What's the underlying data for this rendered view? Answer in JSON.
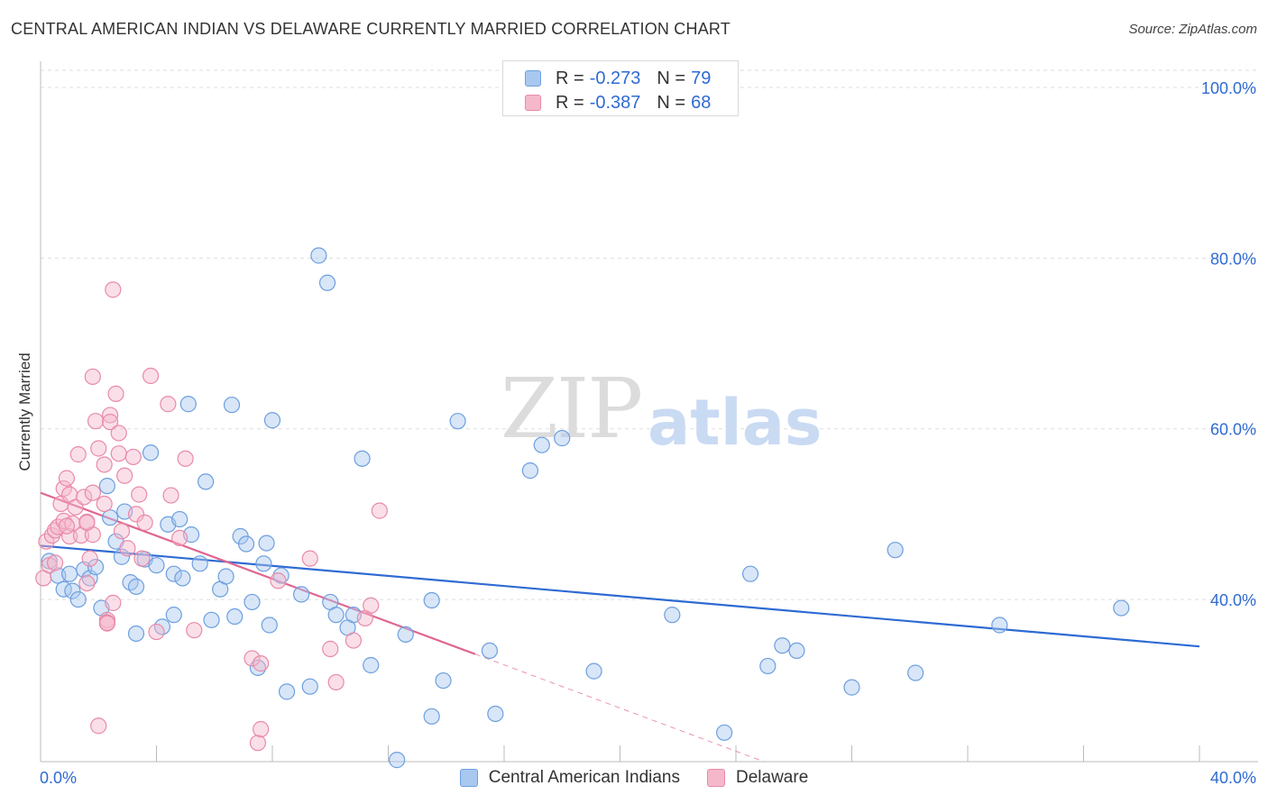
{
  "title": "CENTRAL AMERICAN INDIAN VS DELAWARE CURRENTLY MARRIED CORRELATION CHART",
  "source": "Source: ZipAtlas.com",
  "watermark": {
    "zip": "ZIP",
    "atlas": "atlas"
  },
  "legend": {
    "series1": {
      "r_label": "R =",
      "r_value": "-0.273",
      "n_label": "N =",
      "n_value": "79"
    },
    "series2": {
      "r_label": "R =",
      "r_value": "-0.387",
      "n_label": "N =",
      "n_value": "68"
    }
  },
  "colors": {
    "blue_fill": "#a9c8f0",
    "blue_stroke": "#6d9fdf",
    "blue_line": "#2f6bd3",
    "pink_fill": "#f5b8cb",
    "pink_stroke": "#e98aa8",
    "pink_line": "#e06690",
    "grid": "#dddddd",
    "axis_label": "#2f6bd3"
  },
  "chart_data": {
    "type": "scatter",
    "title": "CENTRAL AMERICAN INDIAN VS DELAWARE CURRENTLY MARRIED CORRELATION CHART",
    "xlabel": "",
    "ylabel": "Currently Married",
    "xlim": [
      0,
      40
    ],
    "ylim": [
      21,
      102
    ],
    "x_tick_labels": [
      "0.0%",
      "40.0%"
    ],
    "y_ticks": [
      40,
      60,
      80,
      100
    ],
    "y_tick_labels": [
      "40.0%",
      "60.0%",
      "80.0%",
      "100.0%"
    ],
    "grid": true,
    "series": [
      {
        "name": "Central American Indians",
        "color": "blue",
        "trend": {
          "x0": 0,
          "y0": 46.3,
          "x1": 40,
          "y1": 34.5
        },
        "points": [
          [
            0.3,
            44.5
          ],
          [
            0.6,
            42.8
          ],
          [
            0.8,
            41.2
          ],
          [
            1.0,
            43.0
          ],
          [
            1.1,
            41.0
          ],
          [
            1.3,
            40.0
          ],
          [
            1.5,
            43.5
          ],
          [
            1.7,
            42.5
          ],
          [
            1.9,
            43.8
          ],
          [
            2.1,
            39.0
          ],
          [
            2.3,
            53.3
          ],
          [
            2.4,
            49.6
          ],
          [
            2.6,
            46.8
          ],
          [
            2.8,
            45.0
          ],
          [
            2.9,
            50.3
          ],
          [
            3.1,
            42.0
          ],
          [
            3.3,
            41.5
          ],
          [
            3.3,
            36.0
          ],
          [
            3.6,
            44.7
          ],
          [
            3.8,
            57.2
          ],
          [
            4.0,
            44.0
          ],
          [
            4.2,
            36.8
          ],
          [
            4.4,
            48.8
          ],
          [
            4.6,
            43.0
          ],
          [
            4.8,
            49.4
          ],
          [
            4.9,
            42.5
          ],
          [
            5.1,
            62.9
          ],
          [
            5.2,
            47.6
          ],
          [
            5.5,
            44.2
          ],
          [
            5.7,
            53.8
          ],
          [
            5.9,
            37.6
          ],
          [
            6.2,
            41.2
          ],
          [
            6.4,
            42.7
          ],
          [
            6.6,
            62.8
          ],
          [
            6.7,
            38.0
          ],
          [
            6.9,
            47.4
          ],
          [
            7.1,
            46.5
          ],
          [
            7.3,
            39.7
          ],
          [
            7.5,
            32.0
          ],
          [
            7.7,
            44.2
          ],
          [
            7.8,
            46.6
          ],
          [
            8.0,
            61.0
          ],
          [
            8.3,
            42.8
          ],
          [
            8.5,
            29.2
          ],
          [
            9.0,
            40.6
          ],
          [
            9.3,
            29.8
          ],
          [
            9.6,
            80.3
          ],
          [
            9.9,
            77.1
          ],
          [
            10.0,
            39.7
          ],
          [
            10.2,
            38.2
          ],
          [
            10.6,
            36.7
          ],
          [
            10.8,
            38.2
          ],
          [
            11.1,
            56.5
          ],
          [
            11.4,
            32.3
          ],
          [
            12.6,
            35.9
          ],
          [
            13.5,
            39.9
          ],
          [
            13.5,
            26.3
          ],
          [
            14.4,
            60.9
          ],
          [
            15.5,
            34.0
          ],
          [
            15.7,
            26.6
          ],
          [
            16.9,
            55.1
          ],
          [
            17.3,
            58.1
          ],
          [
            18.0,
            58.9
          ],
          [
            19.1,
            31.6
          ],
          [
            21.8,
            38.2
          ],
          [
            23.6,
            24.4
          ],
          [
            24.5,
            43.0
          ],
          [
            25.1,
            32.2
          ],
          [
            25.6,
            34.6
          ],
          [
            26.1,
            34.0
          ],
          [
            28.0,
            29.7
          ],
          [
            29.5,
            45.8
          ],
          [
            30.2,
            31.4
          ],
          [
            33.1,
            37.0
          ],
          [
            37.3,
            39.0
          ],
          [
            12.3,
            21.2
          ],
          [
            13.9,
            30.5
          ],
          [
            7.9,
            37.0
          ],
          [
            4.6,
            38.2
          ]
        ]
      },
      {
        "name": "Delaware",
        "color": "pink",
        "trend": {
          "x0": 0,
          "y0": 52.5,
          "x1": 15.0,
          "y1": 33.6
        },
        "trend_ext": {
          "x0": 15.0,
          "y0": 33.6,
          "x1": 40,
          "y1": 2.0
        },
        "points": [
          [
            0.1,
            42.5
          ],
          [
            0.2,
            46.8
          ],
          [
            0.3,
            44.0
          ],
          [
            0.4,
            47.5
          ],
          [
            0.5,
            48.1
          ],
          [
            0.6,
            48.5
          ],
          [
            0.7,
            51.2
          ],
          [
            0.8,
            49.2
          ],
          [
            0.8,
            53.0
          ],
          [
            0.9,
            54.2
          ],
          [
            1.0,
            47.4
          ],
          [
            1.0,
            52.3
          ],
          [
            1.1,
            48.9
          ],
          [
            1.2,
            50.8
          ],
          [
            1.3,
            57.0
          ],
          [
            1.4,
            47.5
          ],
          [
            1.5,
            52.0
          ],
          [
            1.6,
            49.1
          ],
          [
            1.6,
            41.9
          ],
          [
            1.7,
            44.8
          ],
          [
            1.8,
            66.1
          ],
          [
            1.8,
            47.6
          ],
          [
            1.8,
            52.5
          ],
          [
            1.9,
            60.9
          ],
          [
            2.0,
            57.7
          ],
          [
            2.2,
            51.2
          ],
          [
            2.2,
            55.8
          ],
          [
            2.3,
            37.6
          ],
          [
            2.3,
            37.3
          ],
          [
            2.4,
            61.6
          ],
          [
            2.4,
            60.8
          ],
          [
            2.5,
            39.6
          ],
          [
            2.5,
            76.3
          ],
          [
            2.6,
            64.1
          ],
          [
            2.7,
            59.5
          ],
          [
            2.7,
            57.1
          ],
          [
            2.8,
            48.0
          ],
          [
            2.9,
            54.5
          ],
          [
            3.0,
            46.0
          ],
          [
            3.2,
            56.7
          ],
          [
            3.3,
            50.0
          ],
          [
            3.4,
            52.3
          ],
          [
            3.6,
            49.0
          ],
          [
            3.8,
            66.2
          ],
          [
            4.0,
            36.2
          ],
          [
            4.4,
            62.9
          ],
          [
            4.5,
            52.2
          ],
          [
            4.8,
            47.2
          ],
          [
            5.0,
            56.5
          ],
          [
            5.3,
            36.4
          ],
          [
            7.3,
            33.1
          ],
          [
            7.6,
            32.5
          ],
          [
            8.2,
            42.2
          ],
          [
            9.3,
            44.8
          ],
          [
            10.0,
            34.2
          ],
          [
            10.2,
            30.3
          ],
          [
            10.8,
            35.2
          ],
          [
            11.2,
            37.8
          ],
          [
            11.4,
            39.3
          ],
          [
            11.7,
            50.4
          ],
          [
            2.0,
            25.2
          ],
          [
            7.5,
            23.2
          ],
          [
            7.6,
            24.8
          ],
          [
            0.9,
            48.6
          ],
          [
            1.6,
            49.0
          ],
          [
            0.5,
            44.3
          ],
          [
            2.3,
            37.2
          ],
          [
            3.5,
            44.8
          ]
        ]
      }
    ]
  }
}
